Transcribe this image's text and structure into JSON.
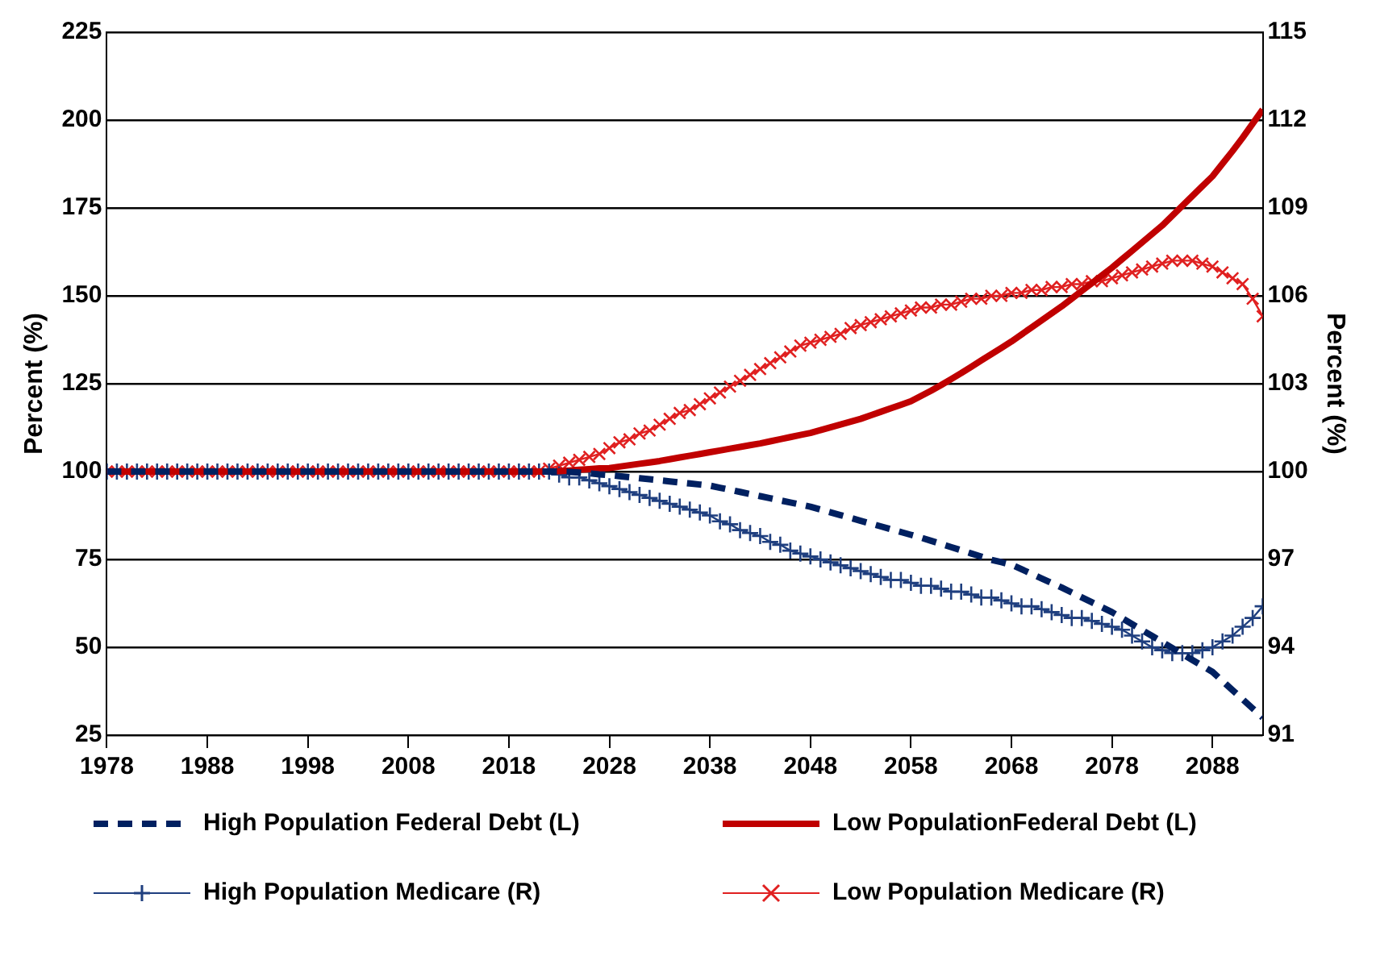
{
  "chart_data": {
    "type": "line",
    "x": [
      1978,
      1979,
      1980,
      1981,
      1982,
      1983,
      1984,
      1985,
      1986,
      1987,
      1988,
      1989,
      1990,
      1991,
      1992,
      1993,
      1994,
      1995,
      1996,
      1997,
      1998,
      1999,
      2000,
      2001,
      2002,
      2003,
      2004,
      2005,
      2006,
      2007,
      2008,
      2009,
      2010,
      2011,
      2012,
      2013,
      2014,
      2015,
      2016,
      2017,
      2018,
      2019,
      2020,
      2021,
      2022,
      2023,
      2024,
      2025,
      2026,
      2027,
      2028,
      2029,
      2030,
      2031,
      2032,
      2033,
      2034,
      2035,
      2036,
      2037,
      2038,
      2039,
      2040,
      2041,
      2042,
      2043,
      2044,
      2045,
      2046,
      2047,
      2048,
      2049,
      2050,
      2051,
      2052,
      2053,
      2054,
      2055,
      2056,
      2057,
      2058,
      2059,
      2060,
      2061,
      2062,
      2063,
      2064,
      2065,
      2066,
      2067,
      2068,
      2069,
      2070,
      2071,
      2072,
      2073,
      2074,
      2075,
      2076,
      2077,
      2078,
      2079,
      2080,
      2081,
      2082,
      2083,
      2084,
      2085,
      2086,
      2087,
      2088,
      2089,
      2090,
      2091,
      2092,
      2093
    ],
    "series": [
      {
        "name": "High Population Federal Debt (L)",
        "color": "#002060",
        "line_style": "dashed",
        "marker": "none",
        "values": [
          100,
          100,
          100,
          100,
          100,
          100,
          100,
          100,
          100,
          100,
          100,
          100,
          100,
          100,
          100,
          100,
          100,
          100,
          100,
          100,
          100,
          100,
          100,
          100,
          100,
          100,
          100,
          100,
          100,
          100,
          100,
          100,
          100,
          100,
          100,
          100,
          100,
          100,
          100,
          100,
          100,
          100,
          100,
          100,
          100,
          100,
          99.9,
          99.7,
          99.5,
          99.2,
          99,
          98.7,
          98.4,
          98.1,
          97.8,
          97.5,
          97.2,
          96.9,
          96.6,
          96.3,
          96,
          95.4,
          94.8,
          94.2,
          93.6,
          93,
          92.4,
          91.8,
          91.2,
          90.6,
          90,
          89.2,
          88.4,
          87.6,
          86.8,
          86,
          85.2,
          84.4,
          83.6,
          82.8,
          82,
          81.2,
          80.3,
          79.4,
          78.5,
          77.6,
          76.7,
          75.8,
          74.9,
          74.2,
          73.5,
          72.2,
          70.9,
          69.6,
          68.3,
          67,
          65.6,
          64.2,
          62.8,
          61.4,
          60,
          58.3,
          56.6,
          54.9,
          53.2,
          51.5,
          49.8,
          48.1,
          46.4,
          44.7,
          43,
          40.4,
          37.8,
          35.2,
          32.6,
          30
        ]
      },
      {
        "name": "Low PopulationFederal Debt (L)",
        "color": "#c00000",
        "line_style": "solid",
        "marker": "none",
        "values": [
          100,
          100,
          100,
          100,
          100,
          100,
          100,
          100,
          100,
          100,
          100,
          100,
          100,
          100,
          100,
          100,
          100,
          100,
          100,
          100,
          100,
          100,
          100,
          100,
          100,
          100,
          100,
          100,
          100,
          100,
          100,
          100,
          100,
          100,
          100,
          100,
          100,
          100,
          100,
          100,
          100,
          100,
          100,
          100,
          100,
          100.1,
          100.3,
          100.5,
          100.7,
          100.9,
          101,
          101.4,
          101.8,
          102.2,
          102.6,
          103,
          103.5,
          104,
          104.5,
          105,
          105.5,
          106,
          106.5,
          107,
          107.5,
          108,
          108.6,
          109.2,
          109.8,
          110.4,
          111,
          111.8,
          112.6,
          113.4,
          114.2,
          115,
          116,
          117,
          118,
          119,
          120,
          121.5,
          123,
          124.6,
          126.3,
          128,
          129.8,
          131.6,
          133.4,
          135.2,
          137,
          139,
          141,
          143,
          145,
          147,
          149.2,
          151.4,
          153.6,
          155.8,
          158,
          160.4,
          162.8,
          165.2,
          167.6,
          170,
          172.8,
          175.6,
          178.4,
          181.2,
          184,
          187.6,
          191.2,
          195,
          199,
          203
        ]
      },
      {
        "name": "High Population Medicare (R)",
        "color": "#1f3f7f",
        "line_style": "solid",
        "marker": "plus",
        "axis": "y2",
        "values": [
          100,
          100,
          100,
          100,
          100,
          100,
          100,
          100,
          100,
          100,
          100,
          100,
          100,
          100,
          100,
          100,
          100,
          100,
          100,
          100,
          100,
          100,
          100,
          100,
          100,
          100,
          100,
          100,
          100,
          100,
          100,
          100,
          100,
          100,
          100,
          100,
          100,
          100,
          100,
          100,
          100,
          100,
          100,
          100,
          100,
          99.9,
          99.8,
          99.8,
          99.7,
          99.6,
          99.5,
          99.4,
          99.3,
          99.2,
          99.1,
          99,
          98.9,
          98.8,
          98.7,
          98.6,
          98.5,
          98.3,
          98.2,
          98,
          97.9,
          97.8,
          97.6,
          97.5,
          97.3,
          97.2,
          97.1,
          97,
          96.9,
          96.8,
          96.7,
          96.6,
          96.5,
          96.4,
          96.3,
          96.3,
          96.2,
          96.1,
          96.1,
          96,
          95.9,
          95.9,
          95.8,
          95.7,
          95.7,
          95.6,
          95.5,
          95.4,
          95.4,
          95.3,
          95.2,
          95.1,
          95,
          95,
          94.9,
          94.8,
          94.7,
          94.6,
          94.4,
          94.2,
          94,
          93.9,
          93.8,
          93.8,
          93.8,
          93.9,
          94,
          94.2,
          94.4,
          94.7,
          95,
          95.4
        ]
      },
      {
        "name": "Low Population Medicare (R)",
        "color": "#e02020",
        "line_style": "solid",
        "marker": "cross",
        "axis": "y2",
        "values": [
          100,
          100,
          100,
          100,
          100,
          100,
          100,
          100,
          100,
          100,
          100,
          100,
          100,
          100,
          100,
          100,
          100,
          100,
          100,
          100,
          100,
          100,
          100,
          100,
          100,
          100,
          100,
          100,
          100,
          100,
          100,
          100,
          100,
          100,
          100,
          100,
          100,
          100,
          100,
          100,
          100,
          100,
          100,
          100,
          100.1,
          100.2,
          100.3,
          100.4,
          100.5,
          100.6,
          100.8,
          101,
          101.1,
          101.3,
          101.4,
          101.6,
          101.8,
          102,
          102.1,
          102.3,
          102.5,
          102.7,
          102.9,
          103.1,
          103.3,
          103.5,
          103.7,
          103.9,
          104.1,
          104.3,
          104.4,
          104.5,
          104.6,
          104.7,
          104.9,
          105,
          105.1,
          105.2,
          105.3,
          105.4,
          105.5,
          105.6,
          105.6,
          105.7,
          105.7,
          105.8,
          105.9,
          105.9,
          106,
          106,
          106.1,
          106.1,
          106.2,
          106.2,
          106.3,
          106.3,
          106.4,
          106.4,
          106.5,
          106.5,
          106.6,
          106.7,
          106.8,
          106.9,
          107,
          107.1,
          107.2,
          107.2,
          107.2,
          107.1,
          107,
          106.8,
          106.6,
          106.4,
          105.9,
          105.3
        ]
      }
    ],
    "xlim": [
      1978,
      2093
    ],
    "xticks": [
      1978,
      1988,
      1998,
      2008,
      2018,
      2028,
      2038,
      2048,
      2058,
      2068,
      2078,
      2088
    ],
    "ylim": [
      25,
      225
    ],
    "yticks": [
      25,
      50,
      75,
      100,
      125,
      150,
      175,
      200,
      225
    ],
    "y2lim": [
      91,
      115
    ],
    "y2ticks": [
      91,
      94,
      97,
      100,
      103,
      106,
      109,
      112,
      115
    ],
    "ylabel": "Percent (%)",
    "y2label": "Percent (%)",
    "grid": "y",
    "legend": "bottom"
  }
}
